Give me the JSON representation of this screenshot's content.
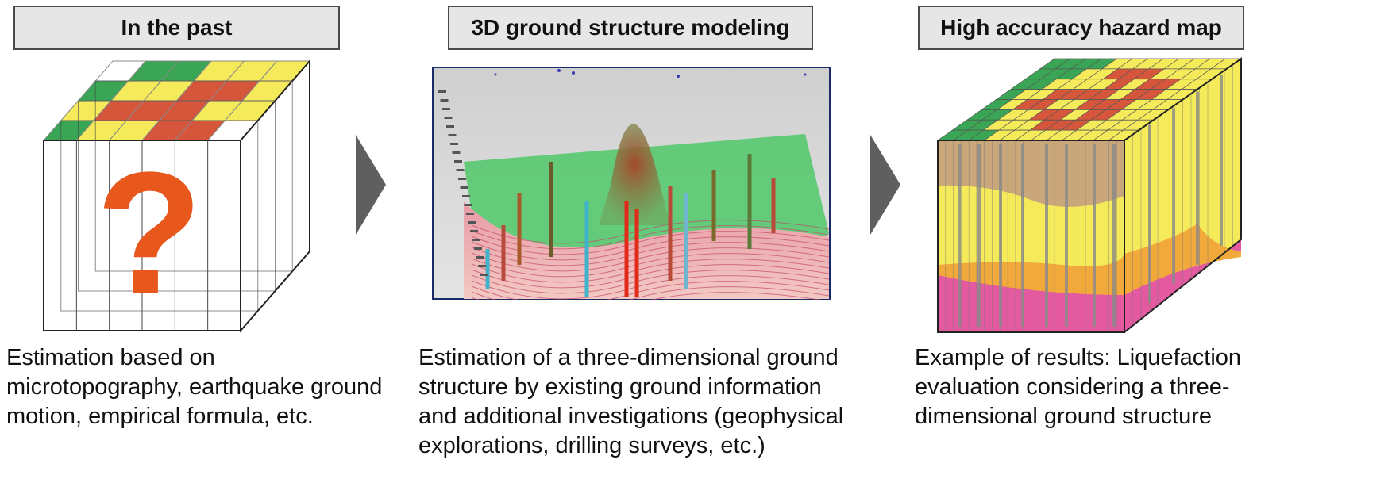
{
  "panels": [
    {
      "header": "In the past",
      "caption": "Estimation based on microtopography, earthquake ground motion, empirical formula, etc.",
      "symbol": "?"
    },
    {
      "header": "3D ground structure modeling",
      "caption": "Estimation of a three-dimensional ground structure by existing ground information and additional investigations (geophysical explorations, drilling surveys, etc.)"
    },
    {
      "header": "High accuracy hazard map",
      "caption": "Example of results: Liquefaction evaluation considering a three-dimensional ground structure"
    }
  ],
  "colors": {
    "green": "#3aa655",
    "yellow": "#f5ea5a",
    "red": "#d6563c",
    "question": "#e8581c",
    "header_bg": "#e6e6e6",
    "arrow": "#5f5f5f",
    "pink": "#e35aa0",
    "orange": "#f2a93b",
    "tan": "#c9a77a"
  }
}
